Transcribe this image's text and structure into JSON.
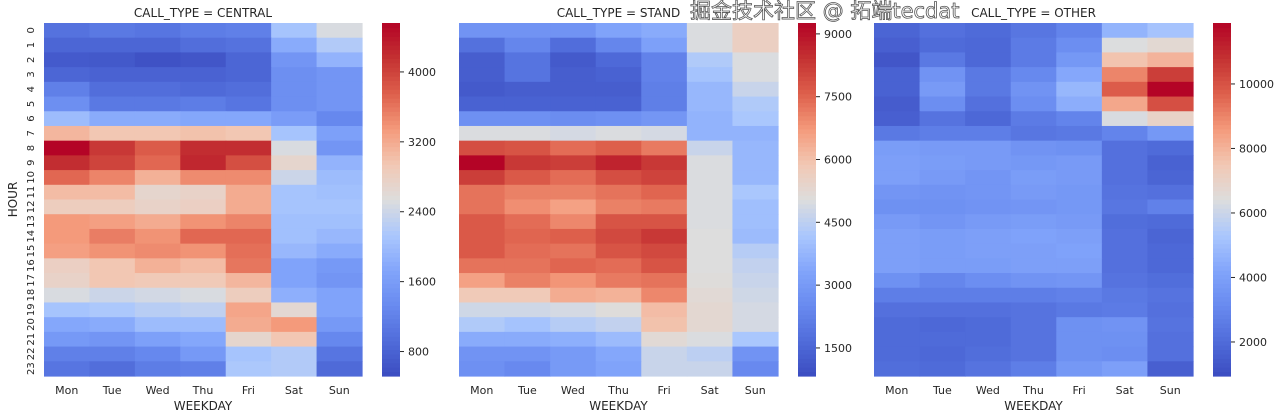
{
  "chart_data": [
    {
      "type": "heatmap",
      "title": "CALL_TYPE = CENTRAL",
      "xlabel": "WEEKDAY",
      "ylabel": "HOUR",
      "x": [
        "Mon",
        "Tue",
        "Wed",
        "Thu",
        "Fri",
        "Sat",
        "Sun"
      ],
      "y": [
        "0",
        "1",
        "2",
        "3",
        "4",
        "5",
        "6",
        "7",
        "8",
        "9",
        "10",
        "11",
        "12",
        "13",
        "14",
        "15",
        "16",
        "17",
        "18",
        "19",
        "20",
        "21",
        "22",
        "23"
      ],
      "colormap": "coolwarm",
      "vmin": 520,
      "vmax": 4560,
      "colorbar_ticks": [
        800,
        1600,
        2400,
        3200,
        4000
      ],
      "values": [
        [
          1000,
          1100,
          1050,
          1150,
          1200,
          2100,
          2500
        ],
        [
          850,
          850,
          850,
          950,
          1000,
          1800,
          2200
        ],
        [
          700,
          680,
          600,
          650,
          850,
          1500,
          1900
        ],
        [
          850,
          800,
          800,
          800,
          850,
          1400,
          1500
        ],
        [
          1200,
          950,
          950,
          900,
          950,
          1400,
          1500
        ],
        [
          1400,
          1100,
          1100,
          1150,
          1050,
          1400,
          1500
        ],
        [
          2000,
          1800,
          1800,
          1750,
          1750,
          1600,
          1300
        ],
        [
          3100,
          2950,
          2950,
          3000,
          2950,
          2100,
          1650
        ],
        [
          4560,
          4100,
          3800,
          4200,
          4200,
          2500,
          1500
        ],
        [
          4200,
          4000,
          3700,
          4250,
          3900,
          2700,
          1900
        ],
        [
          3700,
          3500,
          3150,
          3450,
          3450,
          2400,
          2000
        ],
        [
          3050,
          3050,
          2700,
          2750,
          3200,
          2100,
          2050
        ],
        [
          2850,
          2850,
          2750,
          2800,
          3200,
          2100,
          2100
        ],
        [
          3350,
          3300,
          3200,
          3400,
          3500,
          2050,
          2050
        ],
        [
          3350,
          3550,
          3400,
          3700,
          3700,
          2050,
          1950
        ],
        [
          3300,
          3400,
          3450,
          3400,
          3650,
          1950,
          1800
        ],
        [
          2800,
          2950,
          3150,
          3050,
          3600,
          1700,
          1550
        ],
        [
          2750,
          2950,
          2900,
          2900,
          3100,
          1700,
          1500
        ],
        [
          2500,
          2400,
          2450,
          2500,
          2850,
          1850,
          1700
        ],
        [
          2100,
          2150,
          2250,
          2300,
          3250,
          2650,
          1700
        ],
        [
          1750,
          1800,
          2000,
          2000,
          3200,
          3350,
          1550
        ],
        [
          1550,
          1500,
          1650,
          1750,
          2700,
          2950,
          1300
        ],
        [
          1200,
          1200,
          1300,
          1550,
          2100,
          2200,
          1050
        ],
        [
          1050,
          950,
          1150,
          1200,
          2150,
          2200,
          900
        ]
      ]
    },
    {
      "type": "heatmap",
      "title": "CALL_TYPE = STAND",
      "xlabel": "WEEKDAY",
      "ylabel": "",
      "x": [
        "Mon",
        "Tue",
        "Wed",
        "Thu",
        "Fri",
        "Sat",
        "Sun"
      ],
      "y": [],
      "colormap": "coolwarm",
      "vmin": 830,
      "vmax": 9260,
      "colorbar_ticks": [
        1500,
        3000,
        4500,
        6000,
        7500,
        9000
      ],
      "values": [
        [
          2800,
          2800,
          2800,
          3300,
          3500,
          5000,
          5600
        ],
        [
          1800,
          2400,
          1700,
          2400,
          3200,
          5000,
          5600
        ],
        [
          1300,
          1900,
          1200,
          1600,
          2300,
          4300,
          5000
        ],
        [
          1300,
          1900,
          1300,
          1400,
          2300,
          4100,
          5000
        ],
        [
          1200,
          1300,
          1300,
          1300,
          2200,
          3800,
          4700
        ],
        [
          1400,
          1400,
          1400,
          1400,
          2200,
          3800,
          4300
        ],
        [
          2700,
          2700,
          2600,
          2700,
          2900,
          3700,
          4200
        ],
        [
          5000,
          5000,
          4900,
          5000,
          4900,
          3700,
          3700
        ],
        [
          7900,
          7800,
          7400,
          7600,
          7200,
          4700,
          3800
        ],
        [
          9260,
          8300,
          8200,
          8700,
          8300,
          5000,
          3800
        ],
        [
          8200,
          7700,
          7400,
          7900,
          8100,
          5000,
          3800
        ],
        [
          7300,
          7100,
          7100,
          7300,
          7500,
          5000,
          4200
        ],
        [
          7300,
          6900,
          6600,
          7100,
          7200,
          5000,
          4000
        ],
        [
          7700,
          7400,
          7000,
          7800,
          7800,
          5000,
          4000
        ],
        [
          7700,
          7500,
          7600,
          8000,
          8300,
          5050,
          3900
        ],
        [
          7700,
          7400,
          7300,
          7800,
          8000,
          5050,
          4400
        ],
        [
          7300,
          7300,
          7500,
          7400,
          7800,
          5050,
          4600
        ],
        [
          6600,
          7100,
          6800,
          7200,
          7300,
          5100,
          4700
        ],
        [
          5800,
          5800,
          6400,
          6300,
          7000,
          5200,
          4800
        ],
        [
          4800,
          4800,
          4900,
          5100,
          6100,
          5300,
          4900
        ],
        [
          4300,
          4100,
          4400,
          4600,
          6000,
          5300,
          4900
        ],
        [
          3500,
          3500,
          3600,
          3900,
          5200,
          5000,
          4200
        ],
        [
          2800,
          2800,
          3000,
          3400,
          4700,
          4500,
          2800
        ],
        [
          2700,
          2500,
          3000,
          3300,
          4700,
          4700,
          2500
        ]
      ]
    },
    {
      "type": "heatmap",
      "title": "CALL_TYPE = OTHER",
      "xlabel": "WEEKDAY",
      "ylabel": "",
      "x": [
        "Mon",
        "Tue",
        "Wed",
        "Thu",
        "Fri",
        "Sat",
        "Sun"
      ],
      "y": [],
      "colormap": "coolwarm",
      "vmin": 945,
      "vmax": 11890,
      "colorbar_ticks": [
        2000,
        4000,
        6000,
        8000,
        10000
      ],
      "values": [
        [
          1800,
          2200,
          2000,
          2400,
          2900,
          4700,
          5200
        ],
        [
          1600,
          2000,
          1900,
          2600,
          3300,
          6400,
          6700
        ],
        [
          1300,
          2500,
          1900,
          2600,
          3700,
          7600,
          8000
        ],
        [
          1700,
          3500,
          2500,
          3100,
          4300,
          9000,
          10500
        ],
        [
          1700,
          3800,
          2500,
          3500,
          4800,
          9800,
          11890
        ],
        [
          1500,
          3300,
          2200,
          3300,
          4500,
          8300,
          10100
        ],
        [
          1600,
          2300,
          1900,
          2600,
          2900,
          6300,
          7000
        ],
        [
          2500,
          2700,
          2700,
          2400,
          2500,
          2900,
          3700
        ],
        [
          3900,
          3800,
          3800,
          3500,
          3400,
          2200,
          2000
        ],
        [
          4000,
          3900,
          3800,
          3700,
          3800,
          2200,
          1700
        ],
        [
          4000,
          3800,
          3600,
          3900,
          3800,
          2200,
          1800
        ],
        [
          3600,
          3500,
          3600,
          3800,
          3700,
          2300,
          2200
        ],
        [
          3400,
          3400,
          3500,
          3600,
          3700,
          2400,
          2800
        ],
        [
          3800,
          3600,
          3800,
          3900,
          3800,
          2100,
          2000
        ],
        [
          4000,
          3900,
          4000,
          4100,
          4000,
          2200,
          1800
        ],
        [
          4000,
          3900,
          4000,
          4000,
          4100,
          2200,
          1900
        ],
        [
          4000,
          3900,
          3900,
          4000,
          4000,
          2200,
          1900
        ],
        [
          3400,
          3000,
          3300,
          3500,
          3600,
          2300,
          2100
        ],
        [
          2700,
          2700,
          2700,
          2700,
          2800,
          2500,
          2300
        ],
        [
          2200,
          2200,
          2200,
          2300,
          2500,
          2600,
          2200
        ],
        [
          2000,
          1900,
          2000,
          2300,
          3400,
          3500,
          2300
        ],
        [
          2000,
          2000,
          2000,
          2300,
          3400,
          3400,
          2200
        ],
        [
          2000,
          1900,
          2100,
          2300,
          3400,
          3300,
          2200
        ],
        [
          2100,
          2000,
          2300,
          2700,
          3700,
          4000,
          1600
        ]
      ]
    }
  ],
  "watermark": "掘金技术社区 @ 拓端tecdat"
}
